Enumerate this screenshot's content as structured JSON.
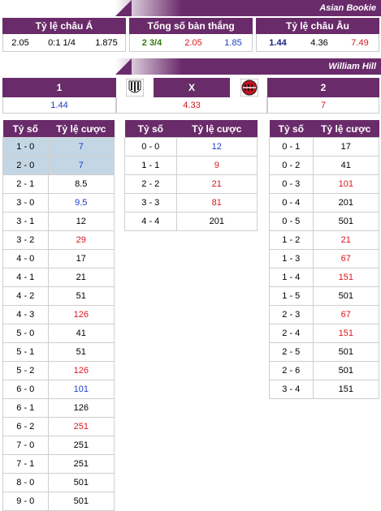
{
  "asian_bookie": {
    "banner": "Asian Bookie",
    "headers": [
      "Tỷ lệ châu Á",
      "Tổng số bàn thắng",
      "Tỷ lệ châu Âu"
    ],
    "asian": {
      "home": "2.05",
      "line": "0:1 1/4",
      "away": "1.875"
    },
    "total": {
      "line": "2 3/4",
      "over": "2.05",
      "under": "1.85"
    },
    "euro": {
      "home": "1.44",
      "draw": "4.36",
      "away": "7.49"
    }
  },
  "william_hill": {
    "banner": "William Hill",
    "labels": {
      "home": "1",
      "draw": "X",
      "away": "2"
    },
    "values": {
      "home": "1.44",
      "draw": "4.33",
      "away": "7"
    }
  },
  "score_header": {
    "score": "Tỷ số",
    "odds": "Tỷ lệ cược"
  },
  "home_wins": [
    {
      "score": "1 - 0",
      "odds": "7",
      "color": "blue",
      "hl": true
    },
    {
      "score": "2 - 0",
      "odds": "7",
      "color": "blue",
      "hl": true
    },
    {
      "score": "2 - 1",
      "odds": "8.5",
      "color": "black"
    },
    {
      "score": "3 - 0",
      "odds": "9.5",
      "color": "blue"
    },
    {
      "score": "3 - 1",
      "odds": "12",
      "color": "black"
    },
    {
      "score": "3 - 2",
      "odds": "29",
      "color": "red"
    },
    {
      "score": "4 - 0",
      "odds": "17",
      "color": "black"
    },
    {
      "score": "4 - 1",
      "odds": "21",
      "color": "black"
    },
    {
      "score": "4 - 2",
      "odds": "51",
      "color": "black"
    },
    {
      "score": "4 - 3",
      "odds": "126",
      "color": "red"
    },
    {
      "score": "5 - 0",
      "odds": "41",
      "color": "black"
    },
    {
      "score": "5 - 1",
      "odds": "51",
      "color": "black"
    },
    {
      "score": "5 - 2",
      "odds": "126",
      "color": "red"
    },
    {
      "score": "6 - 0",
      "odds": "101",
      "color": "blue"
    },
    {
      "score": "6 - 1",
      "odds": "126",
      "color": "black"
    },
    {
      "score": "6 - 2",
      "odds": "251",
      "color": "red"
    },
    {
      "score": "7 - 0",
      "odds": "251",
      "color": "black"
    },
    {
      "score": "7 - 1",
      "odds": "251",
      "color": "black"
    },
    {
      "score": "8 - 0",
      "odds": "501",
      "color": "black"
    },
    {
      "score": "9 - 0",
      "odds": "501",
      "color": "black"
    }
  ],
  "draws": [
    {
      "score": "0 - 0",
      "odds": "12",
      "color": "blue"
    },
    {
      "score": "1 - 1",
      "odds": "9",
      "color": "red"
    },
    {
      "score": "2 - 2",
      "odds": "21",
      "color": "red"
    },
    {
      "score": "3 - 3",
      "odds": "81",
      "color": "red"
    },
    {
      "score": "4 - 4",
      "odds": "201",
      "color": "black"
    }
  ],
  "away_wins": [
    {
      "score": "0 - 1",
      "odds": "17",
      "color": "black"
    },
    {
      "score": "0 - 2",
      "odds": "41",
      "color": "black"
    },
    {
      "score": "0 - 3",
      "odds": "101",
      "color": "red"
    },
    {
      "score": "0 - 4",
      "odds": "201",
      "color": "black"
    },
    {
      "score": "0 - 5",
      "odds": "501",
      "color": "black"
    },
    {
      "score": "1 - 2",
      "odds": "21",
      "color": "red"
    },
    {
      "score": "1 - 3",
      "odds": "67",
      "color": "red"
    },
    {
      "score": "1 - 4",
      "odds": "151",
      "color": "red"
    },
    {
      "score": "1 - 5",
      "odds": "501",
      "color": "black"
    },
    {
      "score": "2 - 3",
      "odds": "67",
      "color": "red"
    },
    {
      "score": "2 - 4",
      "odds": "151",
      "color": "red"
    },
    {
      "score": "2 - 5",
      "odds": "501",
      "color": "black"
    },
    {
      "score": "2 - 6",
      "odds": "501",
      "color": "black"
    },
    {
      "score": "3 - 4",
      "odds": "151",
      "color": "black"
    }
  ],
  "colors": {
    "header": "#6a2b6a",
    "highlight": "#c4d6e4",
    "blue": "#1a3ec8",
    "red": "#d8171d",
    "green": "#2e7d12"
  },
  "icons": {
    "home_logo": "juventus-crest-icon",
    "away_logo": "ac-milan-crest-icon"
  }
}
